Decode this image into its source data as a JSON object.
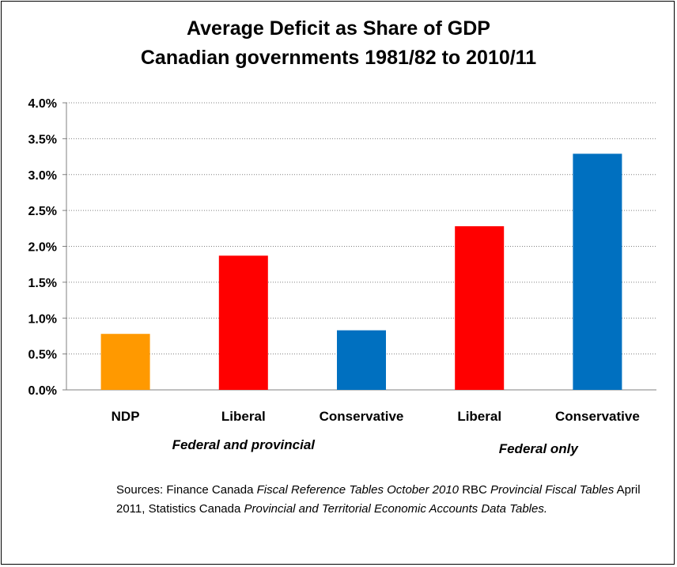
{
  "chart_data": {
    "type": "bar",
    "title": "Average Deficit as Share of GDP",
    "subtitle": "Canadian governments 1981/82 to 2010/11",
    "categories": [
      "NDP",
      "Liberal",
      "Conservative",
      "Liberal",
      "Conservative"
    ],
    "values": [
      0.78,
      1.87,
      0.83,
      2.28,
      3.29
    ],
    "bar_colors": [
      "#ff9900",
      "#ff0000",
      "#0070c0",
      "#ff0000",
      "#0070c0"
    ],
    "ylim": [
      0,
      4.0
    ],
    "yticks": [
      0.0,
      0.5,
      1.0,
      1.5,
      2.0,
      2.5,
      3.0,
      3.5,
      4.0
    ],
    "ytick_labels": [
      "0.0%",
      "0.5%",
      "1.0%",
      "1.5%",
      "2.0%",
      "2.5%",
      "3.0%",
      "3.5%",
      "4.0%"
    ],
    "grid": true,
    "groups": [
      {
        "label": "Federal and provincial",
        "categories": [
          0,
          1,
          2
        ]
      },
      {
        "label": "Federal only",
        "categories": [
          3,
          4
        ]
      }
    ]
  },
  "sources": {
    "p1": "Sources: Finance Canada ",
    "p2": "Fiscal Reference Tables October 2010",
    "p3": "  RBC ",
    "p4": "Provincial Fiscal Tables",
    "p5": " April 2011, Statistics Canada ",
    "p6": "Provincial and Territorial Economic Accounts Data Tables."
  }
}
